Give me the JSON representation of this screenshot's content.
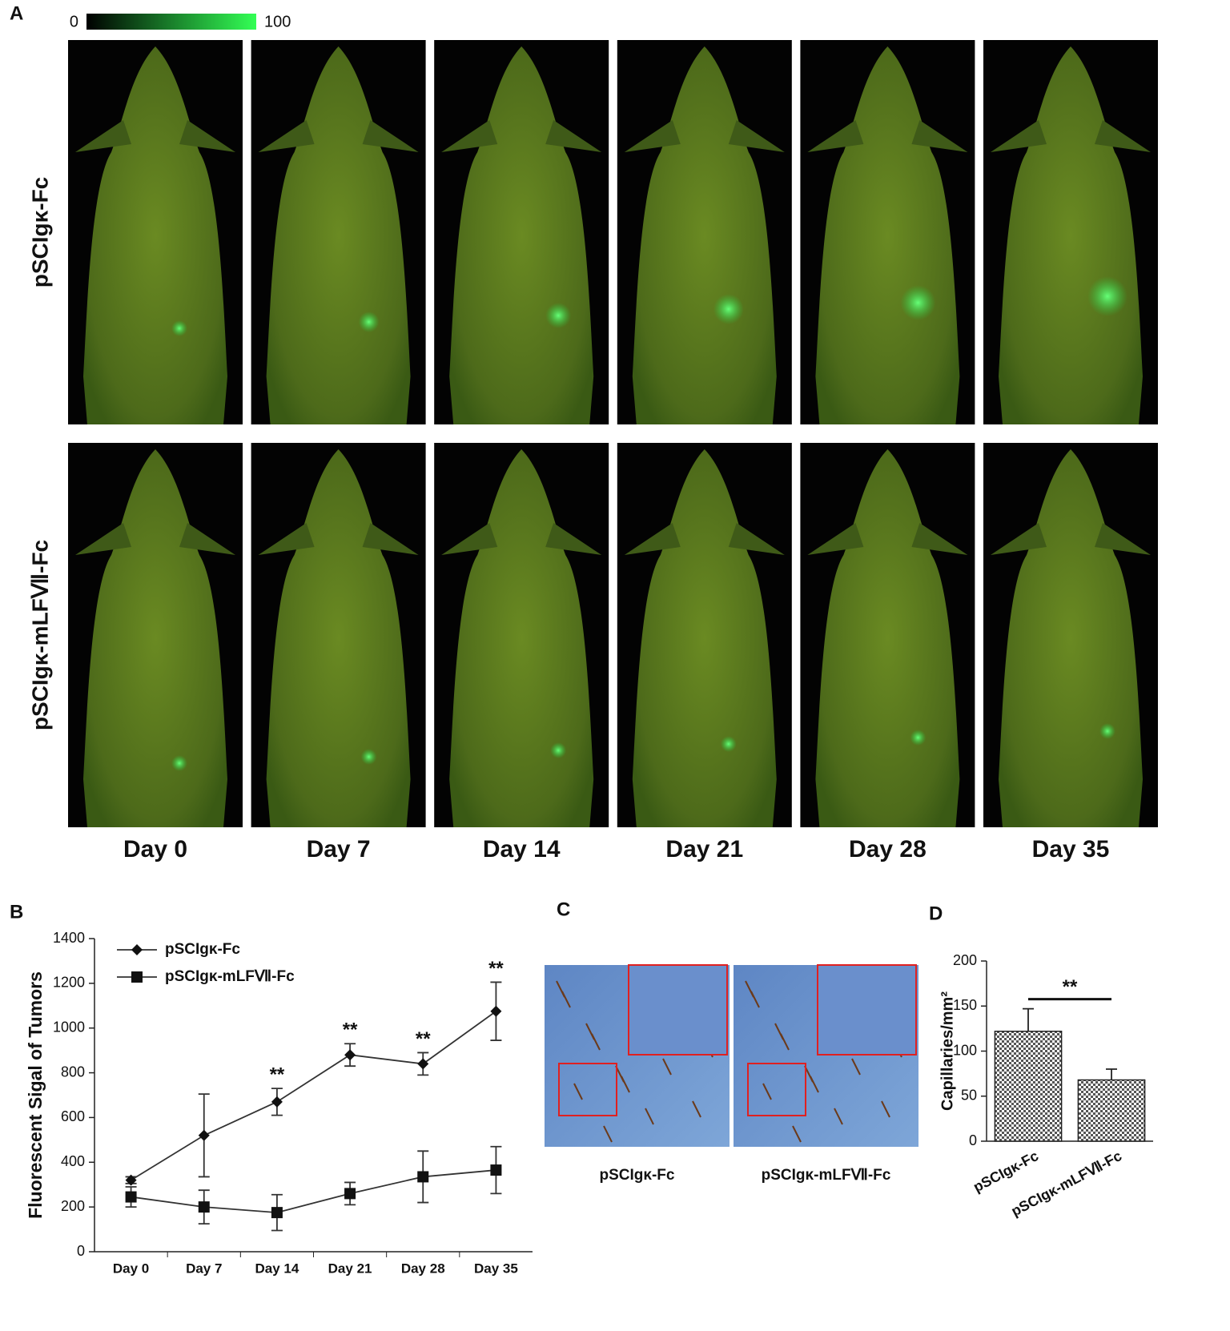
{
  "panel_labels": [
    "A",
    "B",
    "C",
    "D"
  ],
  "panel_a": {
    "colorbar_ticks": [
      0,
      100
    ],
    "row_labels": [
      "pSCIgκ-Fc",
      "pSCIgκ-mLFⅦ-Fc"
    ],
    "column_labels": [
      "Day 0",
      "Day 7",
      "Day 14",
      "Day 21",
      "Day 28",
      "Day 35"
    ]
  },
  "panel_c": {
    "captions": [
      "pSCIgκ-Fc",
      "pSCIgκ-mLFⅦ-Fc"
    ]
  },
  "chart_data": [
    {
      "type": "line",
      "y_label": "Fluorescent Sigal of Tumors",
      "categories": [
        "Day 0",
        "Day 7",
        "Day 14",
        "Day 21",
        "Day 28",
        "Day 35"
      ],
      "series": [
        {
          "name": "pSCIgκ-Fc",
          "color": "#333333",
          "marker": "diamond",
          "values": [
            320,
            520,
            670,
            880,
            840,
            1075
          ],
          "errors": [
            15,
            185,
            60,
            50,
            50,
            130
          ]
        },
        {
          "name": "pSCIgκ-mLFⅦ-Fc",
          "color": "#333333",
          "marker": "square",
          "values": [
            245,
            200,
            175,
            260,
            335,
            365
          ],
          "errors": [
            45,
            75,
            80,
            50,
            115,
            105
          ]
        }
      ],
      "significance": [
        null,
        null,
        "**",
        "**",
        "**",
        "**"
      ],
      "ylim": [
        0,
        1400
      ],
      "yticks": [
        0,
        200,
        400,
        600,
        800,
        1000,
        1200,
        1400
      ],
      "legend": "upper left"
    },
    {
      "type": "bar",
      "y_label": "Capillaries/mm²",
      "categories": [
        "pSCIgκ-Fc",
        "pSCIgκ-mLFⅦ-Fc"
      ],
      "values": [
        122,
        68
      ],
      "errors": [
        25,
        12
      ],
      "color": "#555555",
      "fill_pattern": "checkerboard",
      "significance": "**",
      "ylim": [
        0,
        200
      ],
      "yticks": [
        0,
        50,
        100,
        150,
        200
      ]
    }
  ]
}
